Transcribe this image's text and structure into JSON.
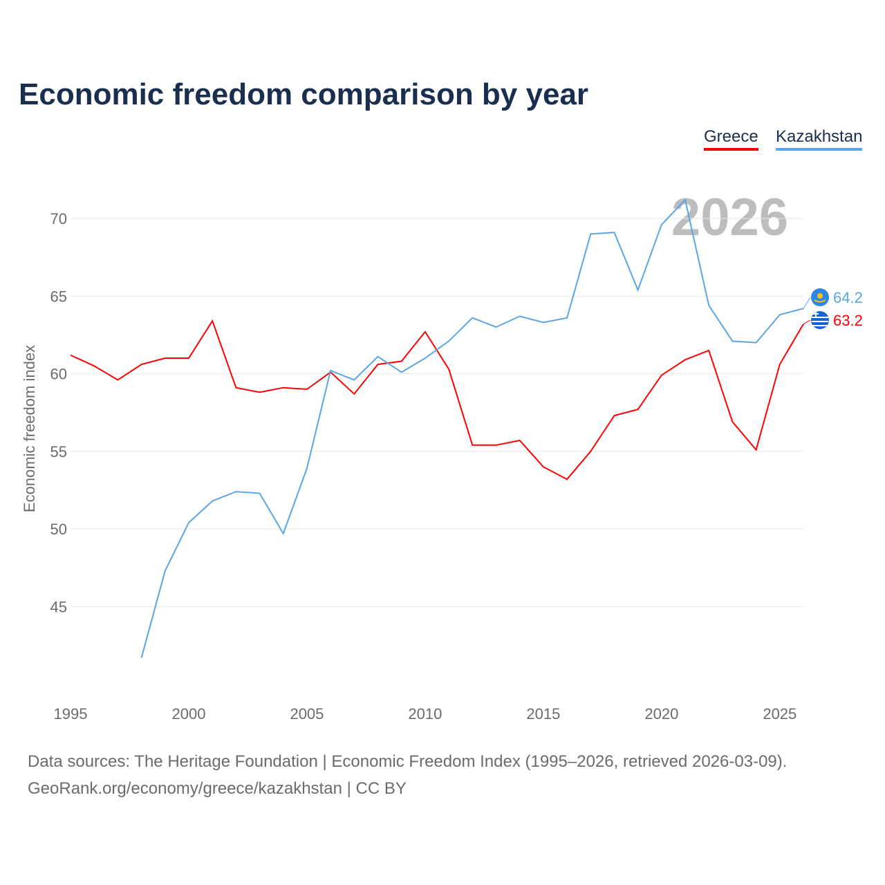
{
  "chart_data": {
    "type": "line",
    "title": "Economic freedom comparison by year",
    "xlabel": "",
    "ylabel": "Economic freedom index",
    "xlim": [
      1995,
      2026
    ],
    "ylim": [
      41.5,
      72.5
    ],
    "x_ticks": [
      1995,
      2000,
      2005,
      2010,
      2015,
      2020,
      2025
    ],
    "y_ticks": [
      45,
      50,
      55,
      60,
      65,
      70
    ],
    "grid": true,
    "legend_position": "top-right",
    "watermark_year": "2026",
    "x": [
      1995,
      1996,
      1997,
      1998,
      1999,
      2000,
      2001,
      2002,
      2003,
      2004,
      2005,
      2006,
      2007,
      2008,
      2009,
      2010,
      2011,
      2012,
      2013,
      2014,
      2015,
      2016,
      2017,
      2018,
      2019,
      2020,
      2021,
      2022,
      2023,
      2024,
      2025,
      2026
    ],
    "series": [
      {
        "name": "Greece",
        "color": "#ff0000",
        "end_label": "63.2",
        "values": [
          61.2,
          60.5,
          59.6,
          60.6,
          61.0,
          61.0,
          63.4,
          59.1,
          58.8,
          59.1,
          59.0,
          60.1,
          58.7,
          60.6,
          60.8,
          62.7,
          60.3,
          55.4,
          55.4,
          55.7,
          54.0,
          53.2,
          55.0,
          57.3,
          57.7,
          59.9,
          60.9,
          61.5,
          56.9,
          55.1,
          60.6,
          63.2
        ]
      },
      {
        "name": "Kazakhstan",
        "color": "#5aa5e8",
        "end_label": "64.2",
        "values": [
          null,
          null,
          null,
          41.7,
          47.3,
          50.4,
          51.8,
          52.4,
          52.3,
          49.7,
          53.9,
          60.2,
          59.6,
          61.1,
          60.1,
          61.0,
          62.1,
          63.6,
          63.0,
          63.7,
          63.3,
          63.6,
          69.0,
          69.1,
          65.4,
          69.6,
          71.2,
          64.4,
          62.1,
          62.0,
          63.8,
          64.2
        ]
      }
    ]
  },
  "footer": {
    "line1": "Data sources: The Heritage Foundation | Economic Freedom Index (1995–2026, retrieved 2026-03-09).",
    "line2": "GeoRank.org/economy/greece/kazakhstan | CC BY"
  }
}
